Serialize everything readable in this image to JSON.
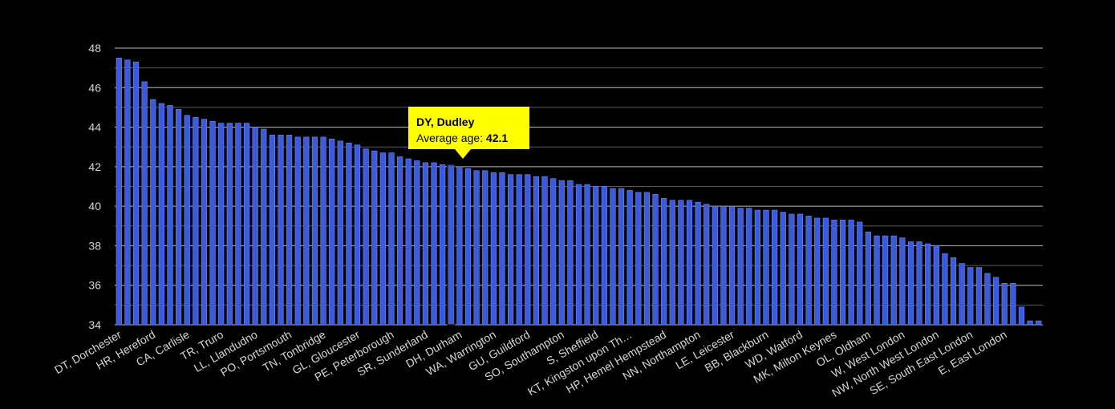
{
  "chart_data": {
    "type": "bar",
    "ylim": [
      34,
      48
    ],
    "yticks": [
      34,
      36,
      38,
      40,
      42,
      44,
      46,
      48
    ],
    "grid": true,
    "bar_color": "#3b5bdb",
    "bar_edge_color": "#6b8cff",
    "background": "#000000",
    "values": [
      47.5,
      47.4,
      47.3,
      46.3,
      45.4,
      45.2,
      45.1,
      44.9,
      44.6,
      44.5,
      44.4,
      44.3,
      44.2,
      44.2,
      44.2,
      44.2,
      44.0,
      43.9,
      43.6,
      43.6,
      43.6,
      43.5,
      43.5,
      43.5,
      43.5,
      43.4,
      43.3,
      43.2,
      43.1,
      42.9,
      42.8,
      42.7,
      42.7,
      42.5,
      42.4,
      42.3,
      42.2,
      42.2,
      42.1,
      42.1,
      42.0,
      41.9,
      41.8,
      41.8,
      41.7,
      41.7,
      41.6,
      41.6,
      41.6,
      41.5,
      41.5,
      41.4,
      41.3,
      41.3,
      41.1,
      41.1,
      41.0,
      41.0,
      40.9,
      40.9,
      40.8,
      40.7,
      40.7,
      40.6,
      40.4,
      40.3,
      40.3,
      40.3,
      40.2,
      40.1,
      40.0,
      40.0,
      40.0,
      39.9,
      39.9,
      39.8,
      39.8,
      39.8,
      39.7,
      39.6,
      39.6,
      39.5,
      39.4,
      39.4,
      39.3,
      39.3,
      39.3,
      39.2,
      38.7,
      38.5,
      38.5,
      38.5,
      38.4,
      38.2,
      38.2,
      38.1,
      38.0,
      37.6,
      37.4,
      37.1,
      36.9,
      36.9,
      36.6,
      36.4,
      36.1,
      36.1,
      34.9,
      34.2,
      34.2
    ],
    "x_labels": [
      {
        "index": 0,
        "text": "DT, Dorchester"
      },
      {
        "index": 4,
        "text": "HR, Hereford"
      },
      {
        "index": 8,
        "text": "CA, Carlisle"
      },
      {
        "index": 12,
        "text": "TR, Truro"
      },
      {
        "index": 16,
        "text": "LL, Llandudno"
      },
      {
        "index": 20,
        "text": "PO, Portsmouth"
      },
      {
        "index": 24,
        "text": "TN, Tonbridge"
      },
      {
        "index": 28,
        "text": "GL, Gloucester"
      },
      {
        "index": 32,
        "text": "PE, Peterborough"
      },
      {
        "index": 36,
        "text": "SR, Sunderland"
      },
      {
        "index": 40,
        "text": "DH, Durham"
      },
      {
        "index": 44,
        "text": "WA, Warrington"
      },
      {
        "index": 48,
        "text": "GU, Guildford"
      },
      {
        "index": 52,
        "text": "SO, Southampton"
      },
      {
        "index": 56,
        "text": "S, Sheffield"
      },
      {
        "index": 60,
        "text": "KT, Kingston upon Th…"
      },
      {
        "index": 64,
        "text": "HP, Hemel Hempstead"
      },
      {
        "index": 68,
        "text": "NN, Northampton"
      },
      {
        "index": 72,
        "text": "LE, Leicester"
      },
      {
        "index": 76,
        "text": "BB, Blackburn"
      },
      {
        "index": 80,
        "text": "WD, Watford"
      },
      {
        "index": 84,
        "text": "MK, Milton Keynes"
      },
      {
        "index": 88,
        "text": "OL, Oldham"
      },
      {
        "index": 92,
        "text": "W, West London"
      },
      {
        "index": 96,
        "text": "NW, North West London"
      },
      {
        "index": 100,
        "text": "SE, South East London"
      },
      {
        "index": 104,
        "text": "E, East London"
      }
    ],
    "highlight_index": 39
  },
  "tooltip": {
    "title": "DY, Dudley",
    "label": "Average age: ",
    "value": "42.1"
  }
}
